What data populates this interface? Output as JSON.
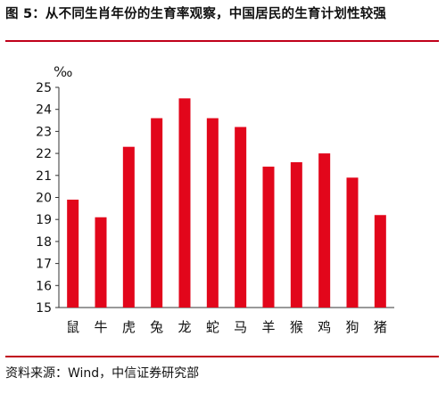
{
  "figure": {
    "title": "图 5：从不同生肖年份的生育率观察，中国居民的生育计划性较强",
    "source": "资料来源：Wind，中信证券研究部",
    "bar_color": "#e2061b",
    "rule_color": "#c0001a"
  },
  "chart_data": {
    "type": "bar",
    "title": "",
    "xlabel": "",
    "ylabel": "‰",
    "categories": [
      "鼠",
      "牛",
      "虎",
      "兔",
      "龙",
      "蛇",
      "马",
      "羊",
      "猴",
      "鸡",
      "狗",
      "猪"
    ],
    "values": [
      19.9,
      19.1,
      22.3,
      23.6,
      24.5,
      23.6,
      23.2,
      21.4,
      21.6,
      22.0,
      20.9,
      19.2
    ],
    "ylim": [
      15,
      25
    ],
    "yticks": [
      15,
      16,
      17,
      18,
      19,
      20,
      21,
      22,
      23,
      24,
      25
    ],
    "grid": false,
    "legend": "none"
  }
}
